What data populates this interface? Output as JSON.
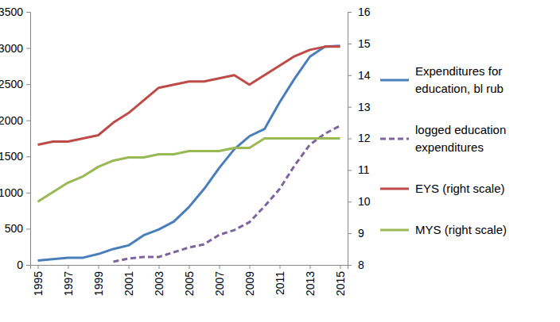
{
  "chart_data": {
    "type": "line",
    "x": [
      1995,
      1996,
      1997,
      1998,
      1999,
      2000,
      2001,
      2002,
      2003,
      2004,
      2005,
      2006,
      2007,
      2008,
      2009,
      2010,
      2011,
      2012,
      2013,
      2014,
      2015
    ],
    "xlim": [
      1994.5,
      2015.5
    ],
    "xticks": [
      1995,
      1997,
      1999,
      2001,
      2003,
      2005,
      2007,
      2009,
      2011,
      2013,
      2015
    ],
    "ylim": [
      0,
      3500
    ],
    "yticks": [
      0,
      500,
      1000,
      1500,
      2000,
      2500,
      3000,
      3500
    ],
    "y2lim": [
      8,
      16
    ],
    "y2ticks": [
      8,
      9,
      10,
      11,
      12,
      13,
      14,
      15,
      16
    ],
    "grid": false,
    "legend": "right",
    "series": [
      {
        "name": "Expenditures for education, bl rub",
        "color": "#4a7ebb",
        "line_style": "solid",
        "values": [
          60,
          80,
          100,
          100,
          150,
          220,
          270,
          410,
          490,
          600,
          800,
          1050,
          1340,
          1600,
          1780,
          1880,
          2250,
          2580,
          2880,
          3020,
          3030
        ]
      },
      {
        "name": "logged education expenditures",
        "color": "#7e649e",
        "line_style": "dashed",
        "axis": "y2",
        "values": [
          null,
          null,
          null,
          null,
          null,
          8.1,
          8.2,
          8.25,
          8.25,
          8.4,
          8.55,
          8.65,
          8.95,
          9.1,
          9.35,
          9.85,
          10.4,
          11.15,
          11.8,
          12.15,
          12.4
        ]
      },
      {
        "name": "EYS (right scale)",
        "color": "#be4b48",
        "line_style": "solid",
        "axis": "y2",
        "values": [
          11.8,
          11.9,
          11.9,
          12.0,
          12.1,
          12.5,
          12.8,
          13.2,
          13.6,
          13.7,
          13.8,
          13.8,
          13.9,
          14.0,
          13.7,
          14.0,
          14.3,
          14.6,
          14.8,
          14.9,
          14.9
        ]
      },
      {
        "name": "MYS (right scale)",
        "color": "#98b954",
        "line_style": "solid",
        "axis": "y2",
        "values": [
          10.0,
          10.3,
          10.6,
          10.8,
          11.1,
          11.3,
          11.4,
          11.4,
          11.5,
          11.5,
          11.6,
          11.6,
          11.6,
          11.7,
          11.7,
          12.0,
          12.0,
          12.0,
          12.0,
          12.0,
          12.0
        ]
      }
    ]
  }
}
